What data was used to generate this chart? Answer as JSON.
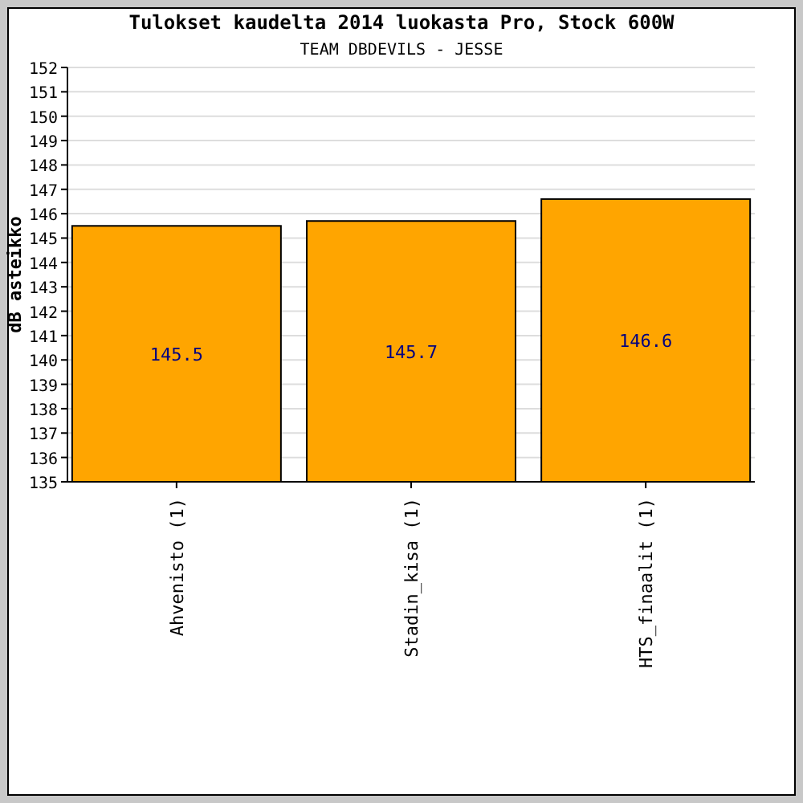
{
  "chart_data": {
    "type": "bar",
    "title": "Tulokset kaudelta 2014 luokasta Pro, Stock 600W",
    "subtitle": "TEAM DBDEVILS - JESSE",
    "ylabel": "dB asteikko",
    "categories": [
      "Ahvenisto (1)",
      "Stadin_kisa (1)",
      "HTS_finaalit (1)"
    ],
    "values": [
      145.5,
      145.7,
      146.6
    ],
    "color": "#ffa500",
    "ylim": [
      135,
      152
    ],
    "yticks": [
      135,
      136,
      137,
      138,
      139,
      140,
      141,
      142,
      143,
      144,
      145,
      146,
      147,
      148,
      149,
      150,
      151,
      152
    ],
    "grid": "y",
    "data_labels": true
  }
}
